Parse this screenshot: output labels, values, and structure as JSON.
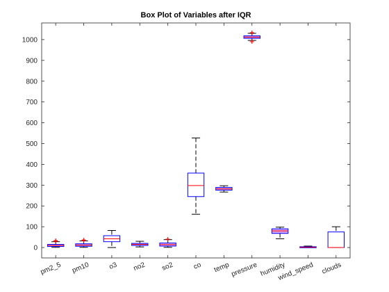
{
  "chart_data": {
    "type": "box",
    "title": "Box Plot of Variables after IQR",
    "xlabel": "",
    "ylabel": "",
    "ylim": [
      -50,
      1080
    ],
    "yticks": [
      0,
      100,
      200,
      300,
      400,
      500,
      600,
      700,
      800,
      900,
      1000
    ],
    "grid": false,
    "colors": {
      "box": "#0000ff",
      "median": "#ff0000",
      "fill": "#d4a6f2",
      "whisker": "#000000",
      "outlier": "#ff0000"
    },
    "categories": [
      "pm2_5",
      "pm10",
      "o3",
      "no2",
      "so2",
      "co",
      "temp",
      "pressure",
      "humidity",
      "wind_speed",
      "clouds"
    ],
    "boxes": [
      {
        "label": "pm2_5",
        "whisker_low": 1,
        "q1": 5,
        "median": 10,
        "q3": 15,
        "whisker_high": 28,
        "outliers": [
          30,
          33
        ],
        "filled": true
      },
      {
        "label": "pm10",
        "whisker_low": 1,
        "q1": 6,
        "median": 12,
        "q3": 18,
        "whisker_high": 32,
        "outliers": [
          34,
          36
        ],
        "filled": true
      },
      {
        "label": "o3",
        "whisker_low": 0,
        "q1": 28,
        "median": 42,
        "q3": 57,
        "whisker_high": 82,
        "outliers": [],
        "filled": false
      },
      {
        "label": "no2",
        "whisker_low": 3,
        "q1": 10,
        "median": 15,
        "q3": 20,
        "whisker_high": 30,
        "outliers": [],
        "filled": true
      },
      {
        "label": "so2",
        "whisker_low": 1,
        "q1": 7,
        "median": 14,
        "q3": 22,
        "whisker_high": 38,
        "outliers": [
          40
        ],
        "filled": true
      },
      {
        "label": "co",
        "whisker_low": 160,
        "q1": 245,
        "median": 298,
        "q3": 358,
        "whisker_high": 527,
        "outliers": [],
        "filled": false
      },
      {
        "label": "temp",
        "whisker_low": 267,
        "q1": 276,
        "median": 282,
        "q3": 289,
        "whisker_high": 297,
        "outliers": [],
        "filled": true
      },
      {
        "label": "pressure",
        "whisker_low": 996,
        "q1": 1006,
        "median": 1012,
        "q3": 1018,
        "whisker_high": 1030,
        "outliers": [
          990,
          1033
        ],
        "filled": true
      },
      {
        "label": "humidity",
        "whisker_low": 42,
        "q1": 68,
        "median": 80,
        "q3": 90,
        "whisker_high": 98,
        "outliers": [],
        "filled": true
      },
      {
        "label": "wind_speed",
        "whisker_low": 0,
        "q1": 1,
        "median": 2,
        "q3": 4,
        "whisker_high": 7,
        "outliers": [],
        "filled": true
      },
      {
        "label": "clouds",
        "whisker_low": 0,
        "q1": 0,
        "median": 0,
        "q3": 75,
        "whisker_high": 100,
        "outliers": [],
        "filled": false
      }
    ]
  }
}
